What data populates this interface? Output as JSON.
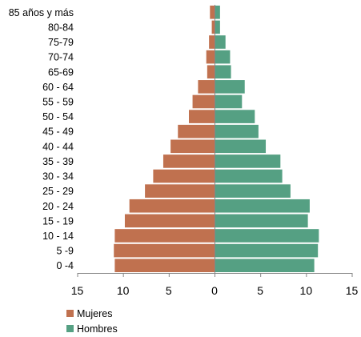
{
  "chart_data": {
    "type": "bar",
    "orientation": "horizontal",
    "chart_style": "population-pyramid",
    "categories": [
      "0 -4",
      "5 -9",
      "10 - 14",
      "15 - 19",
      "20 - 24",
      "25 - 29",
      "30 - 34",
      "35 - 39",
      "40 - 44",
      "45 - 49",
      "50 - 54",
      "55 - 59",
      "60 - 64",
      "65-69",
      "70-74",
      "75-79",
      "80-84",
      "85 años y más"
    ],
    "series": [
      {
        "name": "Mujeres",
        "color": "#c0714f",
        "side": "left",
        "values": [
          10.9,
          11.0,
          10.9,
          9.8,
          9.3,
          7.6,
          6.7,
          5.6,
          4.8,
          4.0,
          2.8,
          2.4,
          1.8,
          0.8,
          0.9,
          0.6,
          0.3,
          0.5
        ]
      },
      {
        "name": "Hombres",
        "color": "#55a083",
        "side": "right",
        "values": [
          10.9,
          11.3,
          11.4,
          10.2,
          10.4,
          8.3,
          7.4,
          7.2,
          5.6,
          4.8,
          4.4,
          3.0,
          3.3,
          1.8,
          1.7,
          1.2,
          0.6,
          0.6
        ]
      }
    ],
    "x_ticks": [
      "15",
      "10",
      "5",
      "0",
      "5",
      "10",
      "15"
    ],
    "xlim": [
      -15,
      15
    ],
    "grid": false,
    "legend": {
      "position": "bottom-left",
      "items": [
        "Mujeres",
        "Hombres"
      ]
    }
  }
}
